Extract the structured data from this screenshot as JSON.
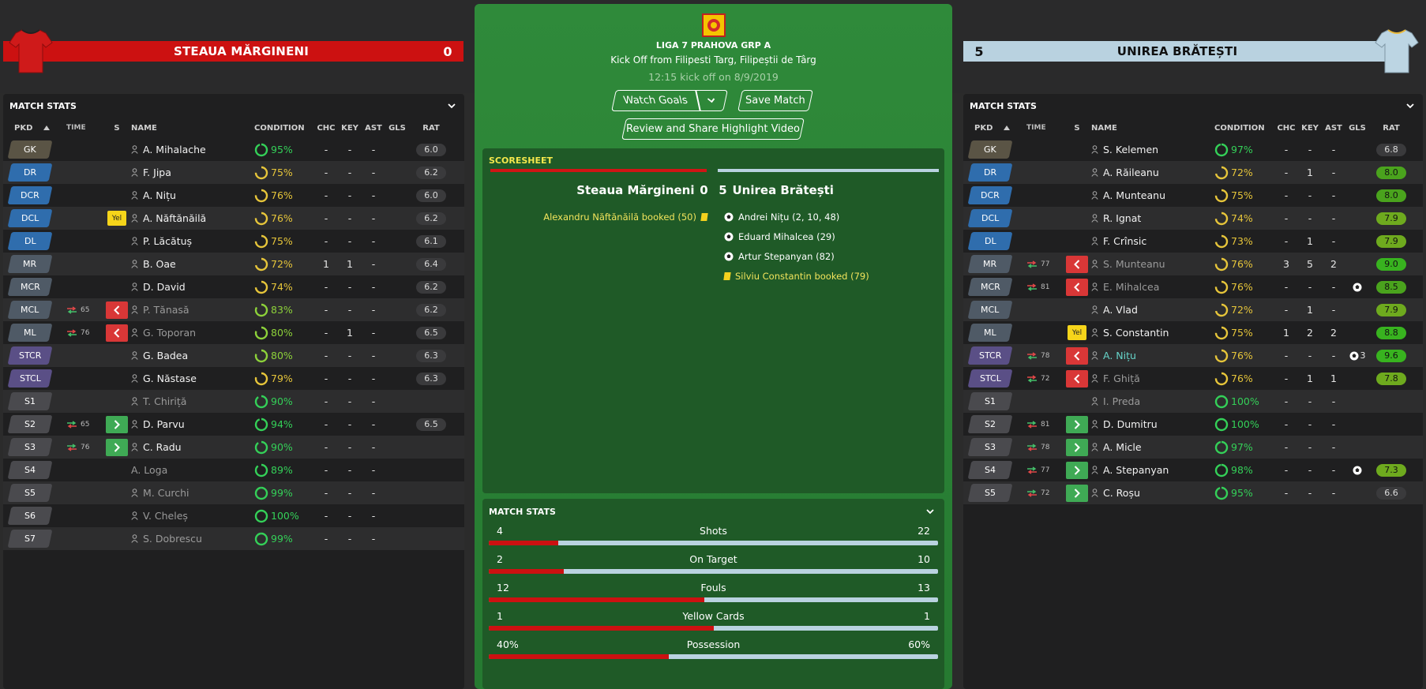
{
  "home": {
    "name": "STEAUA MĂRGINENI",
    "score": "0",
    "shirt_color": "#cc1111",
    "panel_title": "MATCH STATS",
    "headers": {
      "pos": "PKD",
      "time": "TIME",
      "s": "S",
      "name": "NAME",
      "cond": "CONDITION",
      "chc": "CHC",
      "key": "KEY",
      "ast": "AST",
      "gls": "GLS",
      "rat": "RAT"
    },
    "players": [
      {
        "pos": "GK",
        "type": "gk",
        "time": "",
        "sub": "",
        "s": "",
        "name": "A. Mihalache",
        "cond": "95%",
        "cc": "#34d058",
        "cf": 0.95,
        "chc": "-",
        "key": "-",
        "ast": "-",
        "gls": "",
        "rat": "6.0",
        "rc": "",
        "dim": false,
        "icon": true
      },
      {
        "pos": "DR",
        "type": "def",
        "time": "",
        "sub": "",
        "s": "",
        "name": "F. Jipa",
        "cond": "75%",
        "cc": "#e6c53a",
        "cf": 0.75,
        "chc": "-",
        "key": "-",
        "ast": "-",
        "gls": "",
        "rat": "6.2",
        "rc": "",
        "dim": false,
        "icon": true
      },
      {
        "pos": "DCR",
        "type": "def",
        "time": "",
        "sub": "",
        "s": "",
        "name": "A. Nițu",
        "cond": "76%",
        "cc": "#e6c53a",
        "cf": 0.76,
        "chc": "-",
        "key": "-",
        "ast": "-",
        "gls": "",
        "rat": "6.0",
        "rc": "",
        "dim": false,
        "icon": true
      },
      {
        "pos": "DCL",
        "type": "def",
        "time": "",
        "sub": "",
        "s": "yel",
        "name": "A. Năftănăilă",
        "cond": "76%",
        "cc": "#e6c53a",
        "cf": 0.76,
        "chc": "-",
        "key": "-",
        "ast": "-",
        "gls": "",
        "rat": "6.2",
        "rc": "",
        "dim": false,
        "icon": true
      },
      {
        "pos": "DL",
        "type": "def",
        "time": "",
        "sub": "",
        "s": "",
        "name": "P. Lăcătuș",
        "cond": "75%",
        "cc": "#e6c53a",
        "cf": 0.75,
        "chc": "-",
        "key": "-",
        "ast": "-",
        "gls": "",
        "rat": "6.1",
        "rc": "",
        "dim": false,
        "icon": true
      },
      {
        "pos": "MR",
        "type": "mid",
        "time": "",
        "sub": "",
        "s": "",
        "name": "B. Oae",
        "cond": "72%",
        "cc": "#e6c53a",
        "cf": 0.72,
        "chc": "1",
        "key": "1",
        "ast": "-",
        "gls": "",
        "rat": "6.4",
        "rc": "",
        "dim": false,
        "icon": true
      },
      {
        "pos": "MCR",
        "type": "mid",
        "time": "",
        "sub": "",
        "s": "",
        "name": "D. David",
        "cond": "74%",
        "cc": "#e6c53a",
        "cf": 0.74,
        "chc": "-",
        "key": "-",
        "ast": "-",
        "gls": "",
        "rat": "6.2",
        "rc": "",
        "dim": false,
        "icon": true
      },
      {
        "pos": "MCL",
        "type": "mid",
        "time": "65",
        "sub": "out",
        "s": "out",
        "name": "P. Tănasă",
        "cond": "83%",
        "cc": "#8dd23a",
        "cf": 0.83,
        "chc": "-",
        "key": "-",
        "ast": "-",
        "gls": "",
        "rat": "6.2",
        "rc": "",
        "dim": true,
        "icon": true
      },
      {
        "pos": "ML",
        "type": "mid",
        "time": "76",
        "sub": "out",
        "s": "out",
        "name": "G. Toporan",
        "cond": "80%",
        "cc": "#8dd23a",
        "cf": 0.8,
        "chc": "-",
        "key": "1",
        "ast": "-",
        "gls": "",
        "rat": "6.5",
        "rc": "",
        "dim": true,
        "icon": true
      },
      {
        "pos": "STCR",
        "type": "st",
        "time": "",
        "sub": "",
        "s": "",
        "name": "G. Badea",
        "cond": "80%",
        "cc": "#8dd23a",
        "cf": 0.8,
        "chc": "-",
        "key": "-",
        "ast": "-",
        "gls": "",
        "rat": "6.3",
        "rc": "",
        "dim": false,
        "icon": true
      },
      {
        "pos": "STCL",
        "type": "st",
        "time": "",
        "sub": "",
        "s": "",
        "name": "G. Năstase",
        "cond": "79%",
        "cc": "#e6c53a",
        "cf": 0.79,
        "chc": "-",
        "key": "-",
        "ast": "-",
        "gls": "",
        "rat": "6.3",
        "rc": "",
        "dim": false,
        "icon": true
      },
      {
        "pos": "S1",
        "type": "sub",
        "time": "",
        "sub": "",
        "s": "",
        "name": "T. Chiriță",
        "cond": "90%",
        "cc": "#34d058",
        "cf": 0.9,
        "chc": "-",
        "key": "-",
        "ast": "-",
        "gls": "",
        "rat": "",
        "rc": "",
        "dim": true,
        "icon": true
      },
      {
        "pos": "S2",
        "type": "sub",
        "time": "65",
        "sub": "in",
        "s": "in",
        "name": "D. Parvu",
        "cond": "94%",
        "cc": "#34d058",
        "cf": 0.94,
        "chc": "-",
        "key": "-",
        "ast": "-",
        "gls": "",
        "rat": "6.5",
        "rc": "",
        "dim": false,
        "icon": true
      },
      {
        "pos": "S3",
        "type": "sub",
        "time": "76",
        "sub": "in",
        "s": "in",
        "name": "C. Radu",
        "cond": "90%",
        "cc": "#34d058",
        "cf": 0.9,
        "chc": "-",
        "key": "-",
        "ast": "-",
        "gls": "",
        "rat": "",
        "rc": "",
        "dim": false,
        "icon": true
      },
      {
        "pos": "S4",
        "type": "sub",
        "time": "",
        "sub": "",
        "s": "",
        "name": "A. Loga",
        "cond": "89%",
        "cc": "#34d058",
        "cf": 0.89,
        "chc": "-",
        "key": "-",
        "ast": "-",
        "gls": "",
        "rat": "",
        "rc": "",
        "dim": true,
        "icon": false
      },
      {
        "pos": "S5",
        "type": "sub",
        "time": "",
        "sub": "",
        "s": "",
        "name": "M. Curchi",
        "cond": "99%",
        "cc": "#34d058",
        "cf": 0.99,
        "chc": "-",
        "key": "-",
        "ast": "-",
        "gls": "",
        "rat": "",
        "rc": "",
        "dim": true,
        "icon": true
      },
      {
        "pos": "S6",
        "type": "sub",
        "time": "",
        "sub": "",
        "s": "",
        "name": "V. Cheleș",
        "cond": "100%",
        "cc": "#34d058",
        "cf": 1.0,
        "chc": "-",
        "key": "-",
        "ast": "-",
        "gls": "",
        "rat": "",
        "rc": "",
        "dim": true,
        "icon": true
      },
      {
        "pos": "S7",
        "type": "sub",
        "time": "",
        "sub": "",
        "s": "",
        "name": "S. Dobrescu",
        "cond": "99%",
        "cc": "#34d058",
        "cf": 0.99,
        "chc": "-",
        "key": "-",
        "ast": "-",
        "gls": "",
        "rat": "",
        "rc": "",
        "dim": true,
        "icon": true
      }
    ]
  },
  "away": {
    "name": "UNIREA BRĂTEȘTI",
    "score": "5",
    "shirt_color": "#b9d2e0",
    "panel_title": "MATCH STATS",
    "headers": {
      "pos": "PKD",
      "time": "TIME",
      "s": "S",
      "name": "NAME",
      "cond": "CONDITION",
      "chc": "CHC",
      "key": "KEY",
      "ast": "AST",
      "gls": "GLS",
      "rat": "RAT"
    },
    "players": [
      {
        "pos": "GK",
        "type": "gk",
        "time": "",
        "sub": "",
        "s": "",
        "name": "S. Kelemen",
        "cond": "97%",
        "cc": "#34d058",
        "cf": 0.97,
        "chc": "-",
        "key": "-",
        "ast": "-",
        "gls": "",
        "rat": "6.8",
        "rc": "",
        "dim": false,
        "icon": true
      },
      {
        "pos": "DR",
        "type": "def",
        "time": "",
        "sub": "",
        "s": "",
        "name": "A. Răileanu",
        "cond": "72%",
        "cc": "#e6c53a",
        "cf": 0.72,
        "chc": "-",
        "key": "1",
        "ast": "-",
        "gls": "",
        "rat": "8.0",
        "rc": "green",
        "dim": false,
        "icon": true
      },
      {
        "pos": "DCR",
        "type": "def",
        "time": "",
        "sub": "",
        "s": "",
        "name": "A. Munteanu",
        "cond": "75%",
        "cc": "#e6c53a",
        "cf": 0.75,
        "chc": "-",
        "key": "-",
        "ast": "-",
        "gls": "",
        "rat": "8.0",
        "rc": "green",
        "dim": false,
        "icon": true
      },
      {
        "pos": "DCL",
        "type": "def",
        "time": "",
        "sub": "",
        "s": "",
        "name": "R. Ignat",
        "cond": "74%",
        "cc": "#e6c53a",
        "cf": 0.74,
        "chc": "-",
        "key": "-",
        "ast": "-",
        "gls": "",
        "rat": "7.9",
        "rc": "lgreen",
        "dim": false,
        "icon": true
      },
      {
        "pos": "DL",
        "type": "def",
        "time": "",
        "sub": "",
        "s": "",
        "name": "F. Crînsic",
        "cond": "73%",
        "cc": "#e6c53a",
        "cf": 0.73,
        "chc": "-",
        "key": "1",
        "ast": "-",
        "gls": "",
        "rat": "7.9",
        "rc": "lgreen",
        "dim": false,
        "icon": true
      },
      {
        "pos": "MR",
        "type": "mid",
        "time": "77",
        "sub": "out",
        "s": "out",
        "name": "S. Munteanu",
        "cond": "76%",
        "cc": "#e6c53a",
        "cf": 0.76,
        "chc": "3",
        "key": "5",
        "ast": "2",
        "gls": "",
        "rat": "9.0",
        "rc": "bright",
        "dim": true,
        "icon": true
      },
      {
        "pos": "MCR",
        "type": "mid",
        "time": "81",
        "sub": "out",
        "s": "out",
        "name": "E. Mihalcea",
        "cond": "76%",
        "cc": "#e6c53a",
        "cf": 0.76,
        "chc": "-",
        "key": "-",
        "ast": "-",
        "gls": "ball",
        "rat": "8.5",
        "rc": "green",
        "dim": true,
        "icon": true
      },
      {
        "pos": "MCL",
        "type": "mid",
        "time": "",
        "sub": "",
        "s": "",
        "name": "A. Vlad",
        "cond": "72%",
        "cc": "#e6c53a",
        "cf": 0.72,
        "chc": "-",
        "key": "1",
        "ast": "-",
        "gls": "",
        "rat": "7.9",
        "rc": "lgreen",
        "dim": false,
        "icon": true
      },
      {
        "pos": "ML",
        "type": "mid",
        "time": "",
        "sub": "",
        "s": "yel",
        "name": "S. Constantin",
        "cond": "75%",
        "cc": "#e6c53a",
        "cf": 0.75,
        "chc": "1",
        "key": "2",
        "ast": "2",
        "gls": "",
        "rat": "8.8",
        "rc": "bright",
        "dim": false,
        "icon": true
      },
      {
        "pos": "STCR",
        "type": "st",
        "time": "78",
        "sub": "out",
        "s": "out",
        "name": "A. Nițu",
        "cond": "76%",
        "cc": "#e6c53a",
        "cf": 0.76,
        "chc": "-",
        "key": "-",
        "ast": "-",
        "gls": "ball3",
        "rat": "9.6",
        "rc": "bright",
        "dim": false,
        "teal": true,
        "icon": true
      },
      {
        "pos": "STCL",
        "type": "st",
        "time": "72",
        "sub": "out",
        "s": "out",
        "name": "F. Ghiță",
        "cond": "76%",
        "cc": "#e6c53a",
        "cf": 0.76,
        "chc": "-",
        "key": "1",
        "ast": "1",
        "gls": "",
        "rat": "7.8",
        "rc": "lgreen",
        "dim": true,
        "icon": true
      },
      {
        "pos": "S1",
        "type": "sub",
        "time": "",
        "sub": "",
        "s": "",
        "name": "I. Preda",
        "cond": "100%",
        "cc": "#34d058",
        "cf": 1.0,
        "chc": "-",
        "key": "-",
        "ast": "-",
        "gls": "",
        "rat": "",
        "rc": "",
        "dim": true,
        "icon": true
      },
      {
        "pos": "S2",
        "type": "sub",
        "time": "81",
        "sub": "in",
        "s": "in",
        "name": "D. Dumitru",
        "cond": "100%",
        "cc": "#34d058",
        "cf": 1.0,
        "chc": "-",
        "key": "-",
        "ast": "-",
        "gls": "",
        "rat": "",
        "rc": "",
        "dim": false,
        "icon": true
      },
      {
        "pos": "S3",
        "type": "sub",
        "time": "78",
        "sub": "in",
        "s": "in",
        "name": "A. Micle",
        "cond": "97%",
        "cc": "#34d058",
        "cf": 0.97,
        "chc": "-",
        "key": "-",
        "ast": "-",
        "gls": "",
        "rat": "",
        "rc": "",
        "dim": false,
        "icon": true
      },
      {
        "pos": "S4",
        "type": "sub",
        "time": "77",
        "sub": "in",
        "s": "in",
        "name": "A. Stepanyan",
        "cond": "98%",
        "cc": "#34d058",
        "cf": 0.98,
        "chc": "-",
        "key": "-",
        "ast": "-",
        "gls": "ball",
        "rat": "7.3",
        "rc": "lgreen",
        "dim": false,
        "icon": true
      },
      {
        "pos": "S5",
        "type": "sub",
        "time": "72",
        "sub": "in",
        "s": "in",
        "name": "C. Roșu",
        "cond": "95%",
        "cc": "#34d058",
        "cf": 0.95,
        "chc": "-",
        "key": "-",
        "ast": "-",
        "gls": "",
        "rat": "6.6",
        "rc": "",
        "dim": false,
        "icon": true
      }
    ]
  },
  "match": {
    "league": "LIGA 7 PRAHOVA GRP A",
    "kickoff": "Kick Off from Filipesti Targ, Filipeștii de Târg",
    "kickoff_time": "12:15 kick off on 8/9/2019",
    "watch_goals": "Watch Goals",
    "save_match": "Save Match",
    "review": "Review and Share Highlight Video"
  },
  "scoresheet": {
    "title": "SCORESHEET",
    "home_name": "Steaua Mărgineni",
    "home_score": "0",
    "away_score": "5",
    "away_name": "Unirea Brătești",
    "home_events": [
      "Alexandru Năftănăilă booked (50)"
    ],
    "away_events": [
      {
        "text": "Andrei Nițu (2, 10, 48)",
        "type": "goal"
      },
      {
        "text": "Eduard Mihalcea (29)",
        "type": "goal"
      },
      {
        "text": "Artur Stepanyan (82)",
        "type": "goal"
      },
      {
        "text": "Silviu Constantin booked (79)",
        "type": "book"
      }
    ]
  },
  "match_stats": {
    "title": "MATCH STATS",
    "rows": [
      {
        "label": "Shots",
        "home": "4",
        "away": "22",
        "home_frac": 0.154
      },
      {
        "label": "On Target",
        "home": "2",
        "away": "10",
        "home_frac": 0.167
      },
      {
        "label": "Fouls",
        "home": "12",
        "away": "13",
        "home_frac": 0.48
      },
      {
        "label": "Yellow Cards",
        "home": "1",
        "away": "1",
        "home_frac": 0.5
      },
      {
        "label": "Possession",
        "home": "40%",
        "away": "60%",
        "home_frac": 0.4
      }
    ]
  }
}
